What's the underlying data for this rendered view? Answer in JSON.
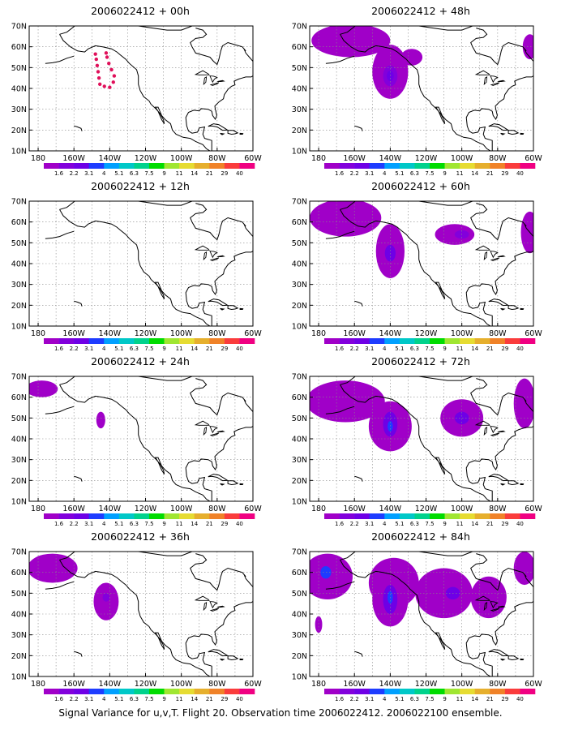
{
  "footer": "Signal Variance for u,v,T. Flight 20. Observation time 2006022412. 2006022100 ensemble.",
  "axes": {
    "lat_labels": [
      "70N",
      "60N",
      "50N",
      "40N",
      "30N",
      "20N",
      "10N"
    ],
    "lon_labels": [
      "180",
      "160W",
      "140W",
      "120W",
      "100W",
      "80W",
      "60W"
    ],
    "lon_range": [
      -185,
      -60
    ],
    "lat_range": [
      10,
      70
    ]
  },
  "colorbar": {
    "labels": [
      "1.6",
      "2.2",
      "3.1",
      "4",
      "5.1",
      "6.3",
      "7.5",
      "9",
      "11",
      "14",
      "21",
      "29",
      "40"
    ],
    "colors": [
      "#a000c8",
      "#8200dc",
      "#6e00e6",
      "#1e3cff",
      "#00a0ff",
      "#00c8c8",
      "#00d28c",
      "#00dc00",
      "#a0e632",
      "#e6dc32",
      "#e6af2d",
      "#f08228",
      "#fa3c3c",
      "#f00082"
    ]
  },
  "panels": [
    {
      "title": "2006022412 + 00h",
      "blobs": [],
      "obs": true
    },
    {
      "title": "2006022412 + 48h",
      "blobs": [
        {
          "lon": -162,
          "lat": 63,
          "rx": 22,
          "ry": 8,
          "c": "#a000c8"
        },
        {
          "lon": -140,
          "lat": 48,
          "rx": 10,
          "ry": 13,
          "c": "#a000c8"
        },
        {
          "lon": -128,
          "lat": 55,
          "rx": 6,
          "ry": 4,
          "c": "#a000c8"
        },
        {
          "lon": -140,
          "lat": 46,
          "rx": 4,
          "ry": 5,
          "c": "#8200dc"
        },
        {
          "lon": -140,
          "lat": 46,
          "rx": 2,
          "ry": 2.5,
          "c": "#6e00e6"
        },
        {
          "lon": -62,
          "lat": 60,
          "rx": 4,
          "ry": 6,
          "c": "#a000c8"
        }
      ]
    },
    {
      "title": "2006022412 + 12h",
      "blobs": []
    },
    {
      "title": "2006022412 + 60h",
      "blobs": [
        {
          "lon": -165,
          "lat": 62,
          "rx": 20,
          "ry": 9,
          "c": "#a000c8"
        },
        {
          "lon": -140,
          "lat": 46,
          "rx": 8,
          "ry": 13,
          "c": "#a000c8"
        },
        {
          "lon": -140,
          "lat": 45,
          "rx": 3,
          "ry": 4,
          "c": "#6e00e6"
        },
        {
          "lon": -104,
          "lat": 54,
          "rx": 11,
          "ry": 5,
          "c": "#a000c8"
        },
        {
          "lon": -100,
          "lat": 54,
          "rx": 4,
          "ry": 2,
          "c": "#8200dc"
        },
        {
          "lon": -62,
          "lat": 55,
          "rx": 5,
          "ry": 10,
          "c": "#a000c8"
        }
      ]
    },
    {
      "title": "2006022412 + 24h",
      "blobs": [
        {
          "lon": -178,
          "lat": 64,
          "rx": 9,
          "ry": 4,
          "c": "#a000c8"
        },
        {
          "lon": -145,
          "lat": 49,
          "rx": 2.5,
          "ry": 4,
          "c": "#a000c8"
        }
      ]
    },
    {
      "title": "2006022412 + 72h",
      "blobs": [
        {
          "lon": -165,
          "lat": 58,
          "rx": 22,
          "ry": 10,
          "c": "#a000c8"
        },
        {
          "lon": -140,
          "lat": 46,
          "rx": 12,
          "ry": 12,
          "c": "#a000c8"
        },
        {
          "lon": -140,
          "lat": 47,
          "rx": 4,
          "ry": 6,
          "c": "#6e00e6"
        },
        {
          "lon": -140,
          "lat": 46,
          "rx": 1.5,
          "ry": 2.5,
          "c": "#1e3cff"
        },
        {
          "lon": -100,
          "lat": 50,
          "rx": 12,
          "ry": 9,
          "c": "#a000c8"
        },
        {
          "lon": -100,
          "lat": 50,
          "rx": 4,
          "ry": 3,
          "c": "#6e00e6"
        },
        {
          "lon": -65,
          "lat": 57,
          "rx": 6,
          "ry": 12,
          "c": "#a000c8"
        }
      ]
    },
    {
      "title": "2006022412 + 36h",
      "blobs": [
        {
          "lon": -172,
          "lat": 62,
          "rx": 14,
          "ry": 7,
          "c": "#a000c8"
        },
        {
          "lon": -142,
          "lat": 46,
          "rx": 7,
          "ry": 9,
          "c": "#a000c8"
        },
        {
          "lon": -142,
          "lat": 48,
          "rx": 2,
          "ry": 2,
          "c": "#8200dc"
        }
      ]
    },
    {
      "title": "2006022412 + 84h",
      "blobs": [
        {
          "lon": -175,
          "lat": 58,
          "rx": 14,
          "ry": 11,
          "c": "#a000c8"
        },
        {
          "lon": -176,
          "lat": 60,
          "rx": 3,
          "ry": 3,
          "c": "#1e3cff"
        },
        {
          "lon": -138,
          "lat": 55,
          "rx": 14,
          "ry": 12,
          "c": "#a000c8"
        },
        {
          "lon": -140,
          "lat": 47,
          "rx": 10,
          "ry": 13,
          "c": "#a000c8"
        },
        {
          "lon": -140,
          "lat": 47,
          "rx": 4,
          "ry": 7,
          "c": "#6e00e6"
        },
        {
          "lon": -140,
          "lat": 48,
          "rx": 1.5,
          "ry": 3,
          "c": "#1e3cff"
        },
        {
          "lon": -110,
          "lat": 50,
          "rx": 16,
          "ry": 12,
          "c": "#a000c8"
        },
        {
          "lon": -105,
          "lat": 50,
          "rx": 4,
          "ry": 3,
          "c": "#6e00e6"
        },
        {
          "lon": -85,
          "lat": 48,
          "rx": 10,
          "ry": 10,
          "c": "#a000c8"
        },
        {
          "lon": -180,
          "lat": 35,
          "rx": 2,
          "ry": 4,
          "c": "#a000c8"
        },
        {
          "lon": -65,
          "lat": 62,
          "rx": 6,
          "ry": 8,
          "c": "#a000c8"
        }
      ]
    }
  ]
}
